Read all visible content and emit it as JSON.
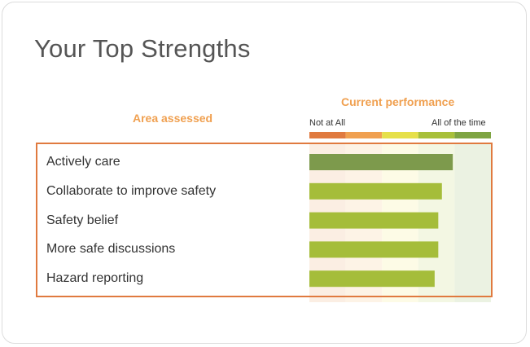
{
  "title": "Your Top Strengths",
  "chart_data": {
    "type": "bar",
    "orientation": "horizontal",
    "title": "Your Top Strengths",
    "category_header": "Area assessed",
    "value_header": "Current performance",
    "scale_low_label": "Not at All",
    "scale_high_label": "All of the time",
    "scale_colors": [
      "#e07a3f",
      "#f0a050",
      "#e6e04a",
      "#a8c03a",
      "#7ea442"
    ],
    "band_colors": [
      "#fbeee3",
      "#fdf3e6",
      "#fdfbe6",
      "#f3f7e3",
      "#ebf2e2"
    ],
    "xlim": [
      0,
      5
    ],
    "categories": [
      "Actively care",
      "Collaborate to improve safety",
      "Safety belief",
      "More safe discussions",
      "Hazard reporting"
    ],
    "values": [
      3.95,
      3.65,
      3.55,
      3.55,
      3.45
    ],
    "bar_colors": [
      "#7d9a4c",
      "#a5bd3a",
      "#a5bd3a",
      "#a5bd3a",
      "#a5bd3a"
    ]
  }
}
